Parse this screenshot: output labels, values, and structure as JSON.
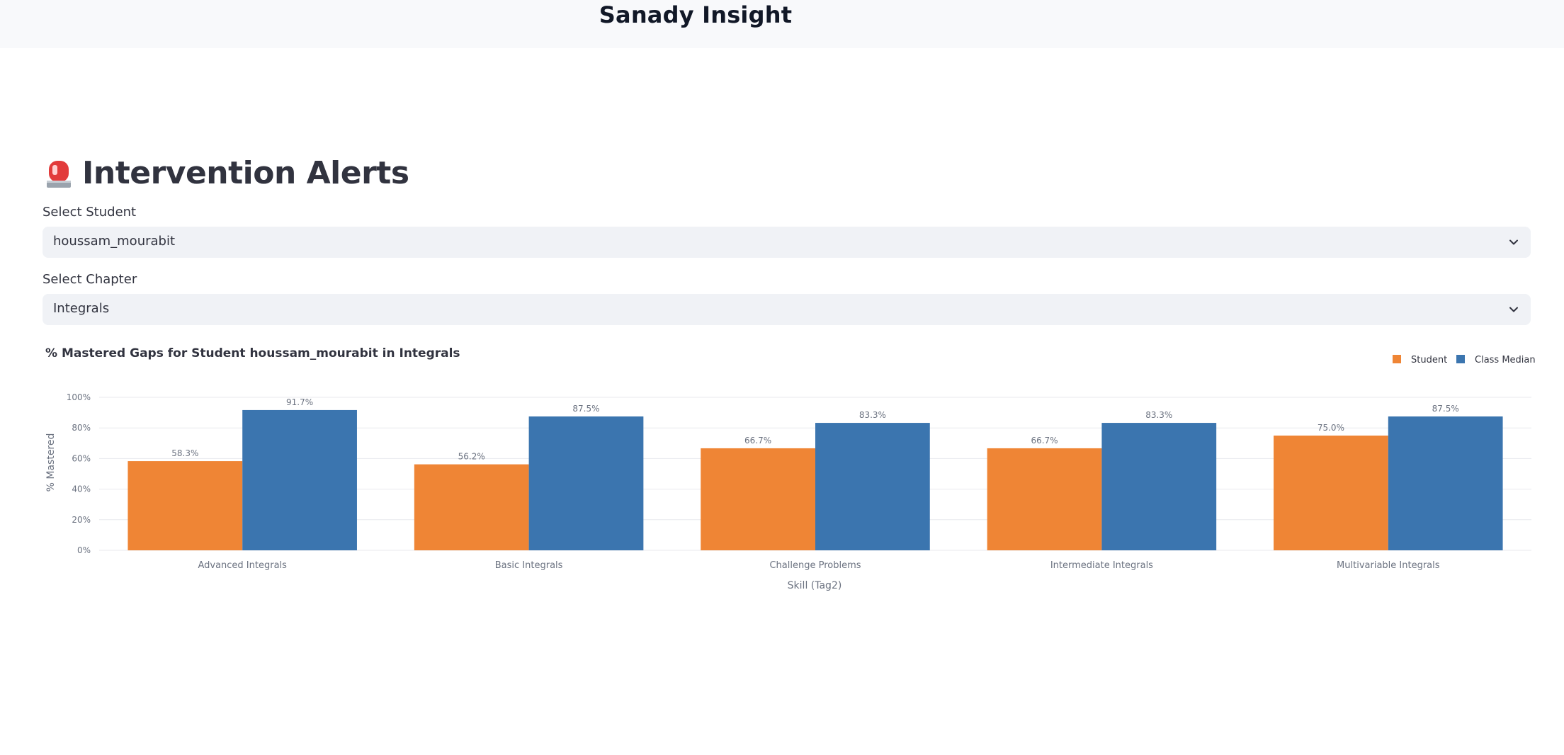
{
  "app": {
    "title": "Sanady Insight"
  },
  "page": {
    "heading": "Intervention Alerts",
    "heading_icon": "siren-icon"
  },
  "student_select": {
    "label": "Select Student",
    "value": "houssam_mourabit"
  },
  "chapter_select": {
    "label": "Select Chapter",
    "value": "Integrals"
  },
  "colors": {
    "student": "#ef8535",
    "class_median": "#3b75af",
    "grid": "#e8eaee",
    "axis_text": "#6b7280"
  },
  "chart_data": {
    "type": "bar",
    "title": "% Mastered Gaps for Student houssam_mourabit in Integrals",
    "xlabel": "Skill (Tag2)",
    "ylabel": "% Mastered",
    "ylim": [
      0,
      100
    ],
    "yticks": [
      "0%",
      "20%",
      "40%",
      "60%",
      "80%",
      "100%"
    ],
    "legend_position": "top-right",
    "categories": [
      "Advanced Integrals",
      "Basic Integrals",
      "Challenge Problems",
      "Intermediate Integrals",
      "Multivariable Integrals"
    ],
    "series": [
      {
        "name": "Student",
        "values": [
          58.3,
          56.2,
          66.7,
          66.7,
          75.0
        ],
        "labels": [
          "58.3%",
          "56.2%",
          "66.7%",
          "66.7%",
          "75.0%"
        ]
      },
      {
        "name": "Class Median",
        "values": [
          91.7,
          87.5,
          83.3,
          83.3,
          87.5
        ],
        "labels": [
          "91.7%",
          "87.5%",
          "83.3%",
          "83.3%",
          "87.5%"
        ]
      }
    ]
  }
}
